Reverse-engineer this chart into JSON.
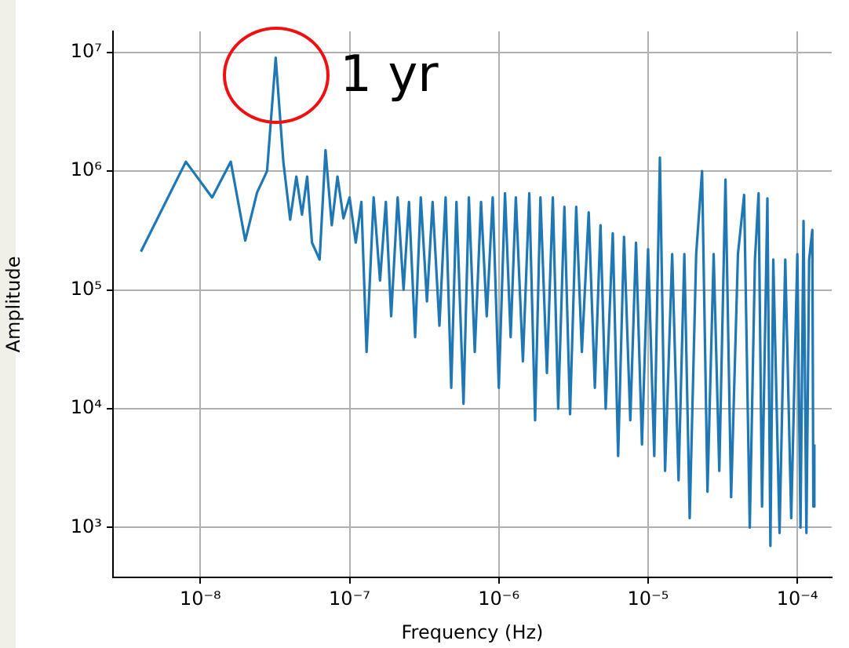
{
  "chart_data": {
    "type": "line",
    "xlabel": "Frequency (Hz)",
    "ylabel": "Amplitude",
    "log": "xy",
    "grid": true,
    "legend": false,
    "marker": "none",
    "line_style": "solid",
    "xlim": [
      2.6e-09,
      0.00017
    ],
    "ylim": [
      380,
      15000000.0
    ],
    "xticks": [
      {
        "value": 1e-08,
        "label": "10⁻⁸"
      },
      {
        "value": 1e-07,
        "label": "10⁻⁷"
      },
      {
        "value": 1e-06,
        "label": "10⁻⁶"
      },
      {
        "value": 1e-05,
        "label": "10⁻⁵"
      },
      {
        "value": 0.0001,
        "label": "10⁻⁴"
      }
    ],
    "yticks": [
      {
        "value": 1000,
        "label": "10³"
      },
      {
        "value": 10000,
        "label": "10⁴"
      },
      {
        "value": 100000,
        "label": "10⁵"
      },
      {
        "value": 1000000,
        "label": "10⁶"
      },
      {
        "value": 10000000,
        "label": "10⁷"
      }
    ],
    "annotations": [
      {
        "text": "1 yr",
        "x": 3.2e-08,
        "y": 9000000
      }
    ],
    "series": [
      {
        "color": "#1f77b4",
        "x": [
          4e-09,
          8e-09,
          1.2e-08,
          1.6e-08,
          2e-08,
          2.4e-08,
          2.8e-08,
          3.2e-08,
          3.6e-08,
          4e-08,
          4.4e-08,
          4.8e-08,
          5.2e-08,
          5.6e-08,
          6.3e-08,
          6.9e-08,
          7.6e-08,
          8.3e-08,
          9.1e-08,
          1e-07,
          1.1e-07,
          1.2e-07,
          1.3e-07,
          1.45e-07,
          1.6e-07,
          1.75e-07,
          1.9e-07,
          2.1e-07,
          2.3e-07,
          2.5e-07,
          2.75e-07,
          3e-07,
          3.3e-07,
          3.6e-07,
          4e-07,
          4.4e-07,
          4.8e-07,
          5.2e-07,
          5.8e-07,
          6.3e-07,
          6.9e-07,
          7.6e-07,
          8.3e-07,
          9.1e-07,
          1e-06,
          1.1e-06,
          1.2e-06,
          1.3e-06,
          1.45e-06,
          1.6e-06,
          1.75e-06,
          1.9e-06,
          2.1e-06,
          2.3e-06,
          2.5e-06,
          2.75e-06,
          3e-06,
          3.3e-06,
          3.6e-06,
          4e-06,
          4.4e-06,
          4.8e-06,
          5.2e-06,
          5.8e-06,
          6.3e-06,
          6.9e-06,
          7.6e-06,
          8.3e-06,
          9.1e-06,
          1e-05,
          1.1e-05,
          1.2e-05,
          1.3e-05,
          1.45e-05,
          1.6e-05,
          1.75e-05,
          1.9e-05,
          2.1e-05,
          2.3e-05,
          2.5e-05,
          2.75e-05,
          3e-05,
          3.3e-05,
          3.6e-05,
          4e-05,
          4.4e-05,
          4.8e-05,
          5.2e-05,
          5.5e-05,
          5.8e-05,
          6.3e-05,
          6.6e-05,
          6.9e-05,
          7.6e-05,
          8.3e-05,
          9.1e-05,
          0.0001,
          0.000105,
          0.00011,
          0.000115,
          0.00012,
          0.000126,
          0.000128,
          0.00013
        ],
        "values": [
          210000,
          1200000,
          600000,
          1200000,
          260000,
          660000,
          1000000,
          9000000,
          1200000,
          390000,
          900000,
          430000,
          900000,
          250000,
          180000,
          1500000,
          350000,
          900000,
          400000,
          600000,
          250000,
          550000,
          30000,
          600000,
          120000,
          550000,
          60000,
          600000,
          100000,
          550000,
          40000,
          600000,
          80000,
          550000,
          50000,
          600000,
          15000,
          550000,
          11000,
          600000,
          30000,
          550000,
          60000,
          600000,
          15000,
          650000,
          40000,
          600000,
          25000,
          650000,
          8000,
          600000,
          20000,
          600000,
          10000,
          500000,
          9000,
          500000,
          30000,
          450000,
          15000,
          350000,
          10000,
          300000,
          4000,
          280000,
          8000,
          250000,
          5000,
          220000,
          4000,
          1300000,
          3000,
          200000,
          2500,
          200000,
          1200,
          200000,
          1000000,
          2000,
          200000,
          3000,
          850000,
          1800,
          200000,
          630000,
          1000,
          180000,
          650000,
          1500,
          590000,
          700,
          180000,
          900,
          180000,
          1200,
          200000,
          1000,
          380000,
          900,
          180000,
          320000,
          1500,
          5000
        ]
      }
    ]
  }
}
